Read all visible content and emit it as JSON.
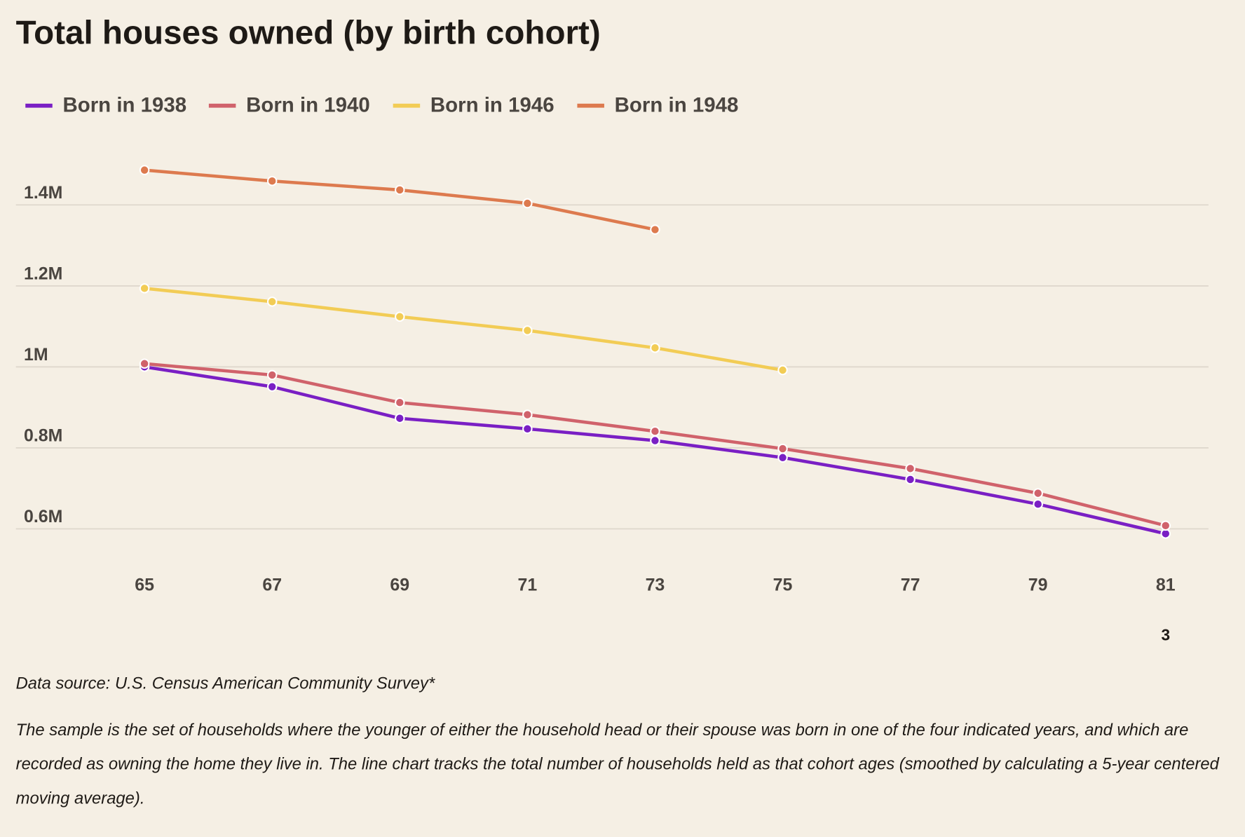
{
  "chart_data": {
    "type": "line",
    "title": "Total houses owned (by birth cohort)",
    "x": [
      65,
      67,
      69,
      71,
      73,
      75,
      77,
      79,
      81
    ],
    "series": [
      {
        "name": "Born in 1938",
        "color": "#7a1fc4",
        "values": [
          1000000,
          951000,
          873000,
          847000,
          818000,
          776000,
          722000,
          661000,
          588000
        ]
      },
      {
        "name": "Born in 1940",
        "color": "#d0626b",
        "values": [
          1008000,
          980000,
          912000,
          882000,
          841000,
          798000,
          749000,
          688000,
          608000
        ]
      },
      {
        "name": "Born in 1946",
        "color": "#f2cc55",
        "values": [
          1194000,
          1161000,
          1124000,
          1090000,
          1047000,
          992000,
          null,
          null,
          null
        ]
      },
      {
        "name": "Born in 1948",
        "color": "#dd7a4e",
        "values": [
          1486000,
          1459000,
          1437000,
          1404000,
          1339000,
          null,
          null,
          null,
          null
        ]
      }
    ],
    "xlim": [
      65,
      81
    ],
    "xticks": [
      65,
      67,
      69,
      71,
      73,
      75,
      77,
      79,
      81
    ],
    "ylim": [
      530000,
      1530000
    ],
    "yticks": [
      {
        "value": 600000,
        "label": "0.6M"
      },
      {
        "value": 800000,
        "label": "0.8M"
      },
      {
        "value": 1000000,
        "label": "1M"
      },
      {
        "value": 1200000,
        "label": "1.2M"
      },
      {
        "value": 1400000,
        "label": "1.4M"
      }
    ],
    "grid": true,
    "legend": "top-left",
    "annotation": "3",
    "source": "Data source: U.S. Census American Community Survey*",
    "note": "The sample is the set of households where the younger of either the household head or their spouse was born in one of the four indicated years, and which are recorded as owning the home they live in. The line chart tracks the total number of households held as that cohort ages (smoothed by calculating a 5-year centered moving average)."
  }
}
